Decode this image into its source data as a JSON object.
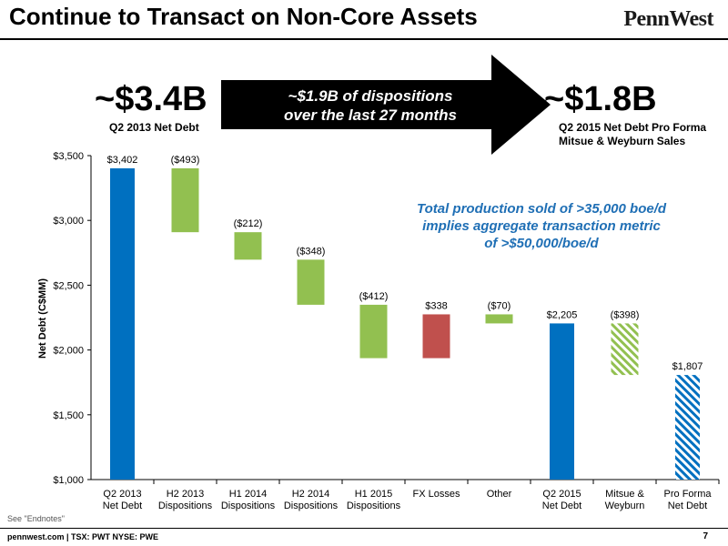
{
  "header": {
    "title": "Continue to Transact on Non-Core Assets",
    "logo_text": "PennWest"
  },
  "callouts": {
    "left_big": "~$3.4B",
    "left_sub": "Q2 2013 Net Debt",
    "arrow_line1": "~$1.9B of dispositions",
    "arrow_line2": "over the last 27 months",
    "right_big": "~$1.8B",
    "right_sub_line1": "Q2 2015 Net Debt Pro Forma",
    "right_sub_line2": "Mitsue & Weyburn Sales",
    "note_line1": "Total production sold of >35,000 boe/d",
    "note_line2": "implies aggregate transaction metric",
    "note_line3": "of >$50,000/boe/d"
  },
  "footer": {
    "site": "pennwest.com | TSX: PWT NYSE: PWE",
    "endnotes": "See \"Endnotes\"",
    "page": "7"
  },
  "colors": {
    "blue": "#0070c0",
    "green": "#92c050",
    "red": "#c0504d"
  },
  "chart_data": {
    "type": "bar",
    "subtype": "waterfall",
    "ylabel": "Net Debt (C$MM)",
    "ylim": [
      1000,
      3500
    ],
    "yticks": [
      1000,
      1500,
      2000,
      2500,
      3000,
      3500
    ],
    "ytick_labels": [
      "$1,000",
      "$1,500",
      "$2,000",
      "$2,500",
      "$3,000",
      "$3,500"
    ],
    "grid": false,
    "bars": [
      {
        "label": [
          "Q2 2013",
          "Net Debt"
        ],
        "low": 1000,
        "high": 3402,
        "value_label": "$3,402",
        "kind": "total",
        "color": "blue"
      },
      {
        "label": [
          "H2 2013",
          "Dispositions"
        ],
        "low": 2909,
        "high": 3402,
        "value_label": "($493)",
        "kind": "delta",
        "color": "green"
      },
      {
        "label": [
          "H1 2014",
          "Dispositions"
        ],
        "low": 2697,
        "high": 2909,
        "value_label": "($212)",
        "kind": "delta",
        "color": "green"
      },
      {
        "label": [
          "H2 2014",
          "Dispositions"
        ],
        "low": 2349,
        "high": 2697,
        "value_label": "($348)",
        "kind": "delta",
        "color": "green"
      },
      {
        "label": [
          "H1 2015",
          "Dispositions"
        ],
        "low": 1937,
        "high": 2349,
        "value_label": "($412)",
        "kind": "delta",
        "color": "green"
      },
      {
        "label": [
          "FX Losses"
        ],
        "low": 1937,
        "high": 2275,
        "value_label": "$338",
        "kind": "delta",
        "color": "red"
      },
      {
        "label": [
          "Other"
        ],
        "low": 2205,
        "high": 2275,
        "value_label": "($70)",
        "kind": "delta",
        "color": "green"
      },
      {
        "label": [
          "Q2 2015",
          "Net Debt"
        ],
        "low": 1000,
        "high": 2205,
        "value_label": "$2,205",
        "kind": "total",
        "color": "blue"
      },
      {
        "label": [
          "Mitsue &",
          "Weyburn"
        ],
        "low": 1807,
        "high": 2205,
        "value_label": "($398)",
        "kind": "delta-hatched",
        "color": "green"
      },
      {
        "label": [
          "Pro Forma",
          "Net Debt"
        ],
        "low": 1000,
        "high": 1807,
        "value_label": "$1,807",
        "kind": "total-hatched",
        "color": "blue"
      }
    ]
  }
}
